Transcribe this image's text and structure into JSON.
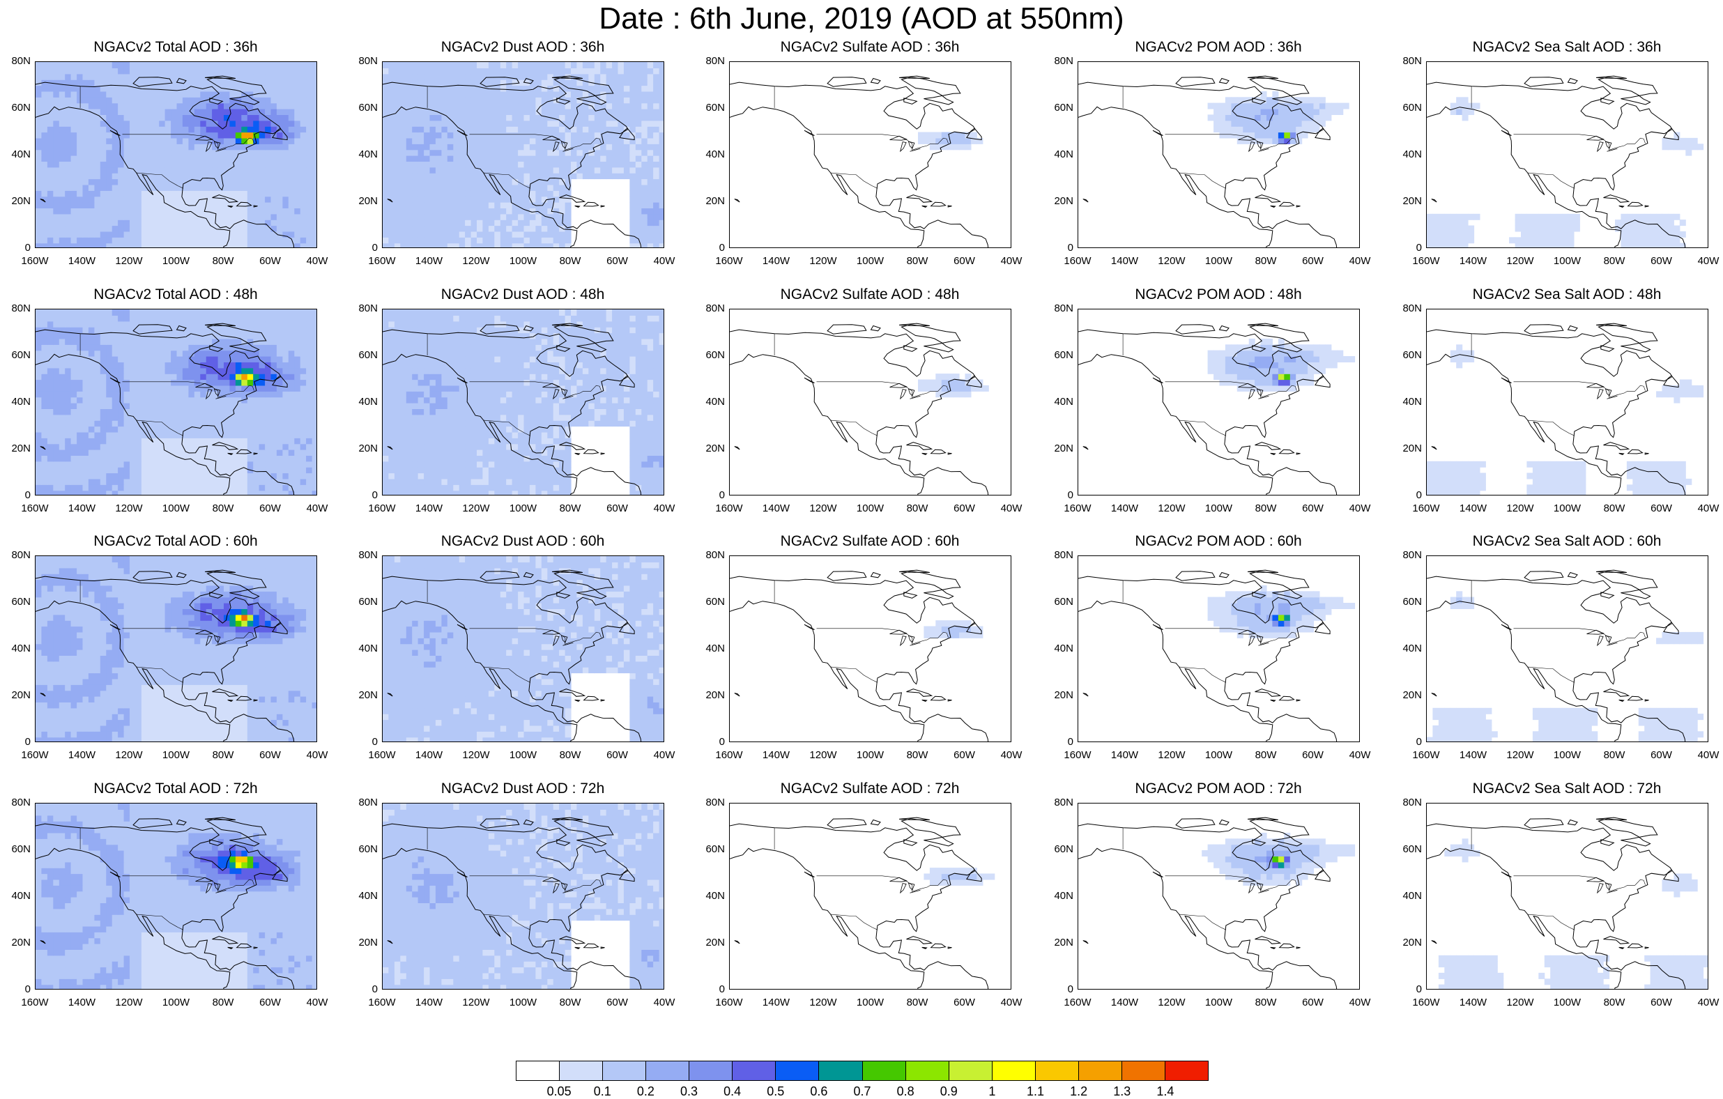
{
  "title": "Date : 6th June, 2019 (AOD at 550nm)",
  "lat_ticks": [
    "80N",
    "60N",
    "40N",
    "20N",
    "0"
  ],
  "lon_ticks": [
    "160W",
    "140W",
    "120W",
    "100W",
    "80W",
    "60W",
    "40W"
  ],
  "panels": [
    {
      "title": "NGACv2 Total AOD : 36h",
      "species": "total",
      "hour": 36
    },
    {
      "title": "NGACv2 Dust AOD : 36h",
      "species": "dust",
      "hour": 36
    },
    {
      "title": "NGACv2 Sulfate AOD : 36h",
      "species": "sulfate",
      "hour": 36
    },
    {
      "title": "NGACv2 POM AOD : 36h",
      "species": "pom",
      "hour": 36
    },
    {
      "title": "NGACv2 Sea Salt AOD : 36h",
      "species": "seasalt",
      "hour": 36
    },
    {
      "title": "NGACv2 Total AOD : 48h",
      "species": "total",
      "hour": 48
    },
    {
      "title": "NGACv2 Dust AOD : 48h",
      "species": "dust",
      "hour": 48
    },
    {
      "title": "NGACv2 Sulfate AOD : 48h",
      "species": "sulfate",
      "hour": 48
    },
    {
      "title": "NGACv2 POM AOD : 48h",
      "species": "pom",
      "hour": 48
    },
    {
      "title": "NGACv2 Sea Salt AOD : 48h",
      "species": "seasalt",
      "hour": 48
    },
    {
      "title": "NGACv2 Total AOD : 60h",
      "species": "total",
      "hour": 60
    },
    {
      "title": "NGACv2 Dust AOD : 60h",
      "species": "dust",
      "hour": 60
    },
    {
      "title": "NGACv2 Sulfate AOD : 60h",
      "species": "sulfate",
      "hour": 60
    },
    {
      "title": "NGACv2 POM AOD : 60h",
      "species": "pom",
      "hour": 60
    },
    {
      "title": "NGACv2 Sea Salt AOD : 60h",
      "species": "seasalt",
      "hour": 60
    },
    {
      "title": "NGACv2 Total AOD : 72h",
      "species": "total",
      "hour": 72
    },
    {
      "title": "NGACv2 Dust AOD : 72h",
      "species": "dust",
      "hour": 72
    },
    {
      "title": "NGACv2 Sulfate AOD : 72h",
      "species": "sulfate",
      "hour": 72
    },
    {
      "title": "NGACv2 POM AOD : 72h",
      "species": "pom",
      "hour": 72
    },
    {
      "title": "NGACv2 Sea Salt  AOD : 72h",
      "species": "seasalt",
      "hour": 72
    }
  ],
  "colorbar": {
    "labels": [
      "0.05",
      "0.1",
      "0.2",
      "0.3",
      "0.4",
      "0.5",
      "0.6",
      "0.7",
      "0.8",
      "0.9",
      "1",
      "1.1",
      "1.2",
      "1.3",
      "1.4"
    ],
    "colors": [
      "#ffffff",
      "#d2defa",
      "#b4c8f7",
      "#95acf3",
      "#7e92ee",
      "#6060e6",
      "#0a5df5",
      "#009694",
      "#45c800",
      "#8ce600",
      "#c8f032",
      "#ffff00",
      "#fac800",
      "#f5a000",
      "#f07300",
      "#f01e00"
    ]
  }
}
